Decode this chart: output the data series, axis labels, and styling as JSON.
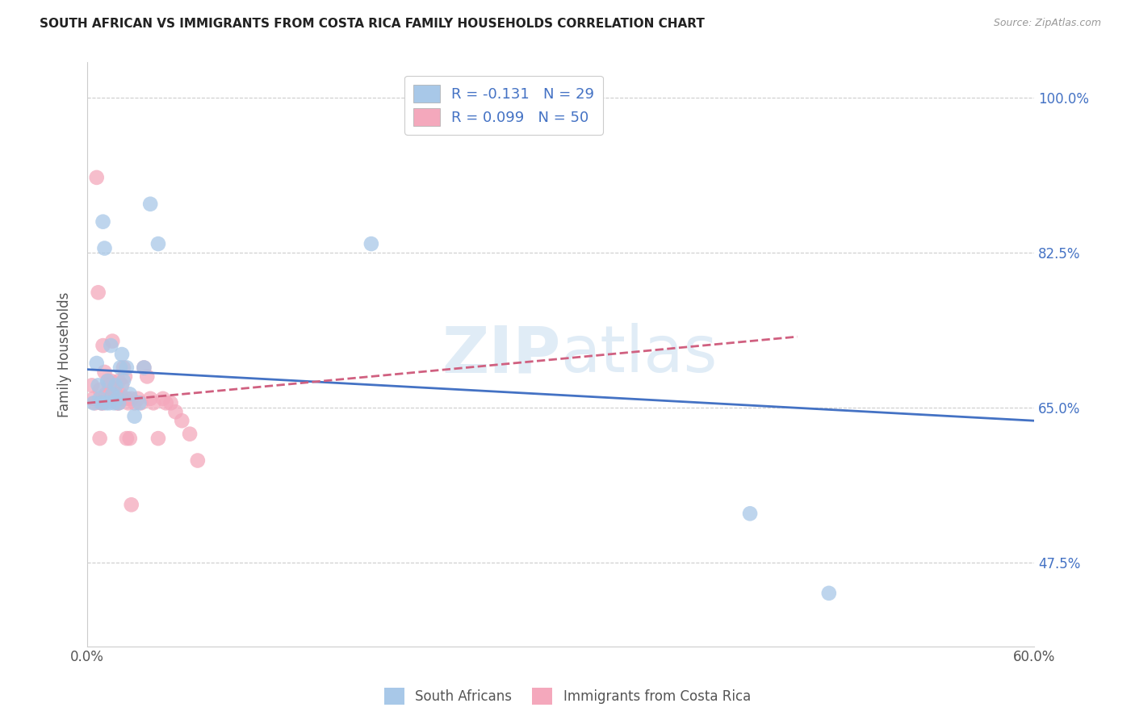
{
  "title": "SOUTH AFRICAN VS IMMIGRANTS FROM COSTA RICA FAMILY HOUSEHOLDS CORRELATION CHART",
  "source": "Source: ZipAtlas.com",
  "ylabel": "Family Households",
  "ytick_labels": [
    "47.5%",
    "65.0%",
    "82.5%",
    "100.0%"
  ],
  "ytick_values": [
    0.475,
    0.65,
    0.825,
    1.0
  ],
  "xmin": 0.0,
  "xmax": 0.6,
  "ymin": 0.38,
  "ymax": 1.04,
  "blue_color": "#a8c8e8",
  "pink_color": "#f4a8bc",
  "blue_line_color": "#4472c4",
  "pink_line_color": "#d06080",
  "watermark": "ZIPatlas",
  "south_africans_x": [
    0.004,
    0.006,
    0.007,
    0.008,
    0.009,
    0.01,
    0.011,
    0.012,
    0.013,
    0.014,
    0.015,
    0.016,
    0.017,
    0.018,
    0.019,
    0.02,
    0.021,
    0.022,
    0.023,
    0.025,
    0.027,
    0.03,
    0.033,
    0.036,
    0.04,
    0.045,
    0.18,
    0.42,
    0.47
  ],
  "south_africans_y": [
    0.655,
    0.7,
    0.675,
    0.66,
    0.655,
    0.86,
    0.83,
    0.655,
    0.68,
    0.655,
    0.72,
    0.665,
    0.655,
    0.675,
    0.66,
    0.655,
    0.695,
    0.71,
    0.68,
    0.695,
    0.665,
    0.64,
    0.655,
    0.695,
    0.88,
    0.835,
    0.835,
    0.53,
    0.44
  ],
  "costa_rica_x": [
    0.003,
    0.004,
    0.005,
    0.006,
    0.007,
    0.008,
    0.009,
    0.01,
    0.011,
    0.012,
    0.013,
    0.014,
    0.015,
    0.016,
    0.017,
    0.018,
    0.019,
    0.02,
    0.021,
    0.022,
    0.023,
    0.024,
    0.025,
    0.026,
    0.027,
    0.028,
    0.03,
    0.032,
    0.034,
    0.036,
    0.038,
    0.04,
    0.042,
    0.045,
    0.048,
    0.05,
    0.053,
    0.056,
    0.06,
    0.065,
    0.07,
    0.008,
    0.01,
    0.012,
    0.015,
    0.018,
    0.02,
    0.022,
    0.025,
    0.028
  ],
  "costa_rica_y": [
    0.675,
    0.66,
    0.655,
    0.91,
    0.78,
    0.67,
    0.655,
    0.72,
    0.69,
    0.665,
    0.68,
    0.675,
    0.66,
    0.725,
    0.67,
    0.665,
    0.655,
    0.68,
    0.665,
    0.66,
    0.695,
    0.685,
    0.66,
    0.655,
    0.615,
    0.66,
    0.655,
    0.66,
    0.655,
    0.695,
    0.685,
    0.66,
    0.655,
    0.615,
    0.66,
    0.655,
    0.655,
    0.645,
    0.635,
    0.62,
    0.59,
    0.615,
    0.655,
    0.665,
    0.68,
    0.66,
    0.655,
    0.675,
    0.615,
    0.54
  ],
  "blue_line_x0": 0.0,
  "blue_line_x1": 0.6,
  "blue_line_y0": 0.693,
  "blue_line_y1": 0.635,
  "pink_line_x0": 0.0,
  "pink_line_x1": 0.45,
  "pink_line_y0": 0.655,
  "pink_line_y1": 0.73
}
